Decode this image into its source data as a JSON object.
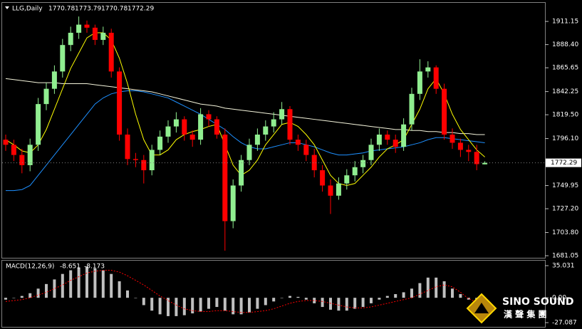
{
  "chart_data": {
    "type": "candlestick",
    "symbol": "LLG,Daily",
    "header_ohlc": [
      1770.78,
      1773.79,
      1770.78,
      1772.29
    ],
    "last_price": 1772.29,
    "up_color": "#90ee90",
    "down_color": "#ff0000",
    "ylim": [
      1679,
      1929.4
    ],
    "yticks": [
      1911.15,
      {
        "value": 1888.4,
        "label": "1888.40"
      },
      1865.65,
      1842.25,
      {
        "value": 1819.5,
        "label": "1819.50"
      },
      {
        "value": 1796.1,
        "label": "1796.10"
      },
      1749.95,
      {
        "value": 1727.2,
        "label": "1727.20"
      },
      {
        "value": 1703.8,
        "label": "1703.80"
      },
      1681.05
    ],
    "open": [
      1795,
      1790,
      1780,
      1770,
      1790,
      1830,
      1845,
      1862,
      1888,
      1900,
      1908,
      1905,
      1893,
      1900,
      1862,
      1800,
      1776,
      1775,
      1765,
      1785,
      1798,
      1808,
      1815,
      1800,
      1795,
      1820,
      1815,
      1800,
      1715,
      1750,
      1775,
      1790,
      1800,
      1808,
      1815,
      1825,
      1795,
      1790,
      1780,
      1765,
      1750,
      1740,
      1752,
      1760,
      1768,
      1775,
      1790,
      1800,
      1795,
      1788,
      1810,
      1840,
      1862,
      1866,
      1845,
      1800,
      1792,
      1785,
      1783,
      1770.78
    ],
    "high": [
      1800,
      1795,
      1786,
      1796,
      1836,
      1851,
      1868,
      1894,
      1906,
      1916,
      1912,
      1908,
      1906,
      1904,
      1866,
      1806,
      1782,
      1780,
      1790,
      1804,
      1814,
      1822,
      1818,
      1804,
      1826,
      1824,
      1818,
      1806,
      1756,
      1780,
      1796,
      1806,
      1814,
      1822,
      1832,
      1828,
      1800,
      1795,
      1786,
      1770,
      1756,
      1758,
      1766,
      1774,
      1780,
      1796,
      1806,
      1804,
      1800,
      1816,
      1846,
      1874,
      1872,
      1868,
      1850,
      1806,
      1796,
      1790,
      1790,
      1773.79
    ],
    "low": [
      1784,
      1774,
      1762,
      1764,
      1784,
      1824,
      1840,
      1856,
      1882,
      1894,
      1900,
      1888,
      1888,
      1856,
      1794,
      1770,
      1768,
      1752,
      1760,
      1780,
      1792,
      1802,
      1794,
      1788,
      1790,
      1808,
      1796,
      1686,
      1708,
      1744,
      1770,
      1784,
      1794,
      1802,
      1810,
      1790,
      1784,
      1774,
      1758,
      1744,
      1722,
      1736,
      1746,
      1754,
      1762,
      1770,
      1784,
      1790,
      1782,
      1784,
      1804,
      1834,
      1856,
      1840,
      1795,
      1786,
      1778,
      1774,
      1765,
      1770.78
    ],
    "close": [
      1790,
      1780,
      1770,
      1790,
      1830,
      1845,
      1862,
      1888,
      1900,
      1908,
      1905,
      1893,
      1900,
      1862,
      1800,
      1776,
      1775,
      1765,
      1785,
      1798,
      1808,
      1815,
      1800,
      1795,
      1820,
      1815,
      1800,
      1715,
      1750,
      1775,
      1790,
      1800,
      1808,
      1815,
      1825,
      1795,
      1790,
      1780,
      1765,
      1750,
      1740,
      1752,
      1760,
      1768,
      1775,
      1790,
      1800,
      1795,
      1788,
      1810,
      1840,
      1862,
      1866,
      1845,
      1800,
      1792,
      1785,
      1783,
      1771,
      1772.29
    ],
    "moving_averages": [
      {
        "color": "#f5f5dc",
        "values": [
          1855,
          1854,
          1853,
          1852,
          1851,
          1851,
          1851,
          1850,
          1850,
          1850,
          1850,
          1849,
          1848,
          1847,
          1846,
          1845,
          1844,
          1843,
          1842,
          1840,
          1838,
          1836,
          1834,
          1832,
          1830,
          1829,
          1828,
          1826,
          1825,
          1824,
          1823,
          1822,
          1821,
          1820,
          1819,
          1818,
          1817,
          1816,
          1815,
          1814,
          1813,
          1812,
          1811,
          1810,
          1809,
          1808,
          1807,
          1806,
          1805,
          1805,
          1804,
          1804,
          1803,
          1803,
          1802,
          1802,
          1801,
          1801,
          1800,
          1800
        ]
      },
      {
        "color": "#1e90ff",
        "values": [
          1745,
          1745,
          1746,
          1750,
          1760,
          1770,
          1780,
          1790,
          1800,
          1810,
          1820,
          1830,
          1836,
          1840,
          1842,
          1843,
          1843,
          1842,
          1840,
          1838,
          1836,
          1832,
          1828,
          1824,
          1820,
          1815,
          1810,
          1805,
          1798,
          1792,
          1788,
          1786,
          1786,
          1788,
          1790,
          1792,
          1792,
          1790,
          1788,
          1785,
          1782,
          1780,
          1780,
          1781,
          1782,
          1784,
          1785,
          1786,
          1787,
          1788,
          1790,
          1792,
          1795,
          1797,
          1797,
          1796,
          1795,
          1794,
          1793,
          1792
        ]
      },
      {
        "color": "#ffff00",
        "values": [
          1795,
          1790,
          1784,
          1782,
          1790,
          1805,
          1825,
          1845,
          1865,
          1880,
          1895,
          1900,
          1900,
          1893,
          1875,
          1850,
          1820,
          1795,
          1780,
          1780,
          1785,
          1795,
          1800,
          1803,
          1805,
          1808,
          1810,
          1790,
          1770,
          1760,
          1765,
          1775,
          1790,
          1800,
          1810,
          1812,
          1808,
          1800,
          1790,
          1775,
          1760,
          1752,
          1750,
          1752,
          1760,
          1768,
          1778,
          1786,
          1790,
          1795,
          1810,
          1825,
          1845,
          1855,
          1840,
          1820,
          1805,
          1795,
          1785,
          1778
        ]
      }
    ],
    "indicator": {
      "type": "macd",
      "name": "MACD(12,26,9)",
      "current_values": [
        -8.651,
        -8.173
      ],
      "ylim": [
        -31.7,
        40.5
      ],
      "yticks": [
        35.031,
        {
          "value": 0,
          "label": "0.00"
        },
        -27.087
      ],
      "histogram_color": "#c0c0c0",
      "signal_color": "#ff0000",
      "macd": [
        -2,
        0,
        2,
        5,
        10,
        15,
        20,
        26,
        30,
        33,
        34,
        32,
        30,
        26,
        18,
        8,
        0,
        -8,
        -14,
        -18,
        -20,
        -20,
        -19,
        -17,
        -15,
        -12,
        -10,
        -14,
        -18,
        -18,
        -16,
        -12,
        -8,
        -4,
        0,
        2,
        1,
        -2,
        -6,
        -10,
        -13,
        -14,
        -14,
        -12,
        -10,
        -6,
        -2,
        2,
        4,
        6,
        10,
        16,
        22,
        22,
        18,
        10,
        4,
        -2,
        -6,
        -8.651
      ],
      "signal": [
        -4,
        -3,
        -2,
        0,
        3,
        6,
        10,
        14,
        19,
        23,
        27,
        29,
        30,
        30,
        28,
        24,
        19,
        14,
        8,
        2,
        -3,
        -8,
        -12,
        -14,
        -15,
        -15,
        -14,
        -14,
        -15,
        -16,
        -16,
        -15,
        -14,
        -12,
        -9,
        -6,
        -4,
        -3,
        -3,
        -4,
        -6,
        -8,
        -10,
        -11,
        -11,
        -10,
        -8,
        -6,
        -4,
        -2,
        0,
        4,
        8,
        12,
        14,
        12,
        6,
        -1,
        -5,
        -8.173
      ]
    },
    "logo": {
      "name": "SINO SOUND",
      "subtitle": "漢 聲 集 團"
    }
  }
}
